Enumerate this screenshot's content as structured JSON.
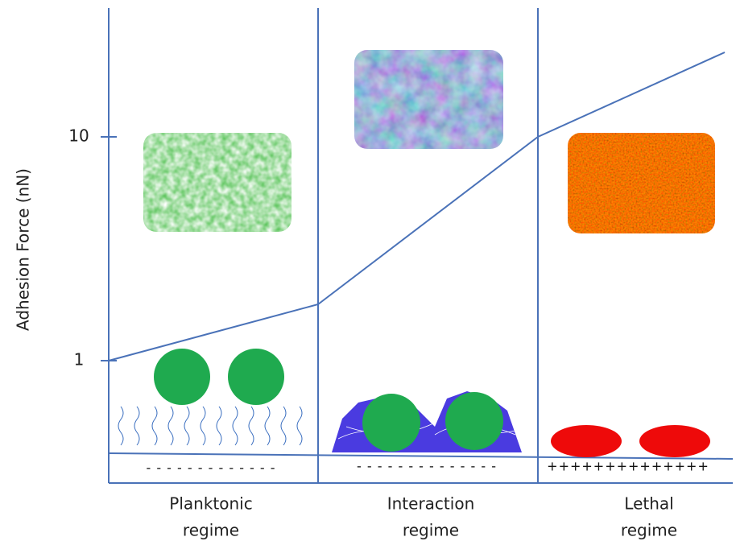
{
  "axis": {
    "label": "Adhesion Force (nN)",
    "ticks": [
      "10",
      "1"
    ]
  },
  "regimes": [
    {
      "name": "Planktonic",
      "sub": "regime",
      "charge": "- - - - - - - - - - - - -"
    },
    {
      "name": "Interaction",
      "sub": "regime",
      "charge": "- - - - - - - - - - - - - -"
    },
    {
      "name": "Lethal",
      "sub": "regime",
      "charge": "++++++++++++++"
    }
  ]
}
